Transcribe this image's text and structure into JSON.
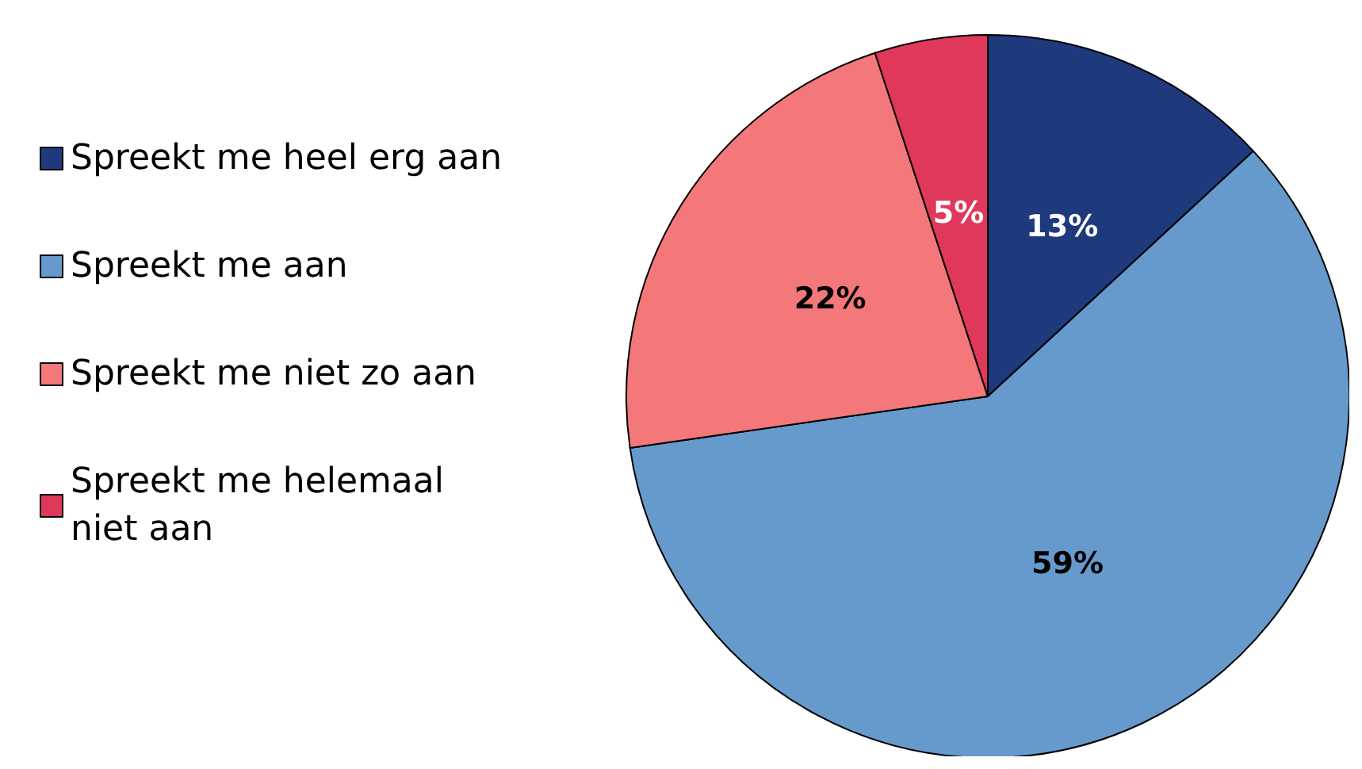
{
  "chart_data": {
    "type": "pie",
    "categories": [
      "Spreekt me heel erg aan",
      "Spreekt me aan",
      "Spreekt me niet zo aan",
      "Spreekt me helemaal niet aan"
    ],
    "values": [
      13,
      59,
      22,
      5
    ],
    "colors": [
      "#1f3a7c",
      "#6699cc",
      "#f4777a",
      "#e0385a"
    ],
    "value_labels": [
      "13%",
      "59%",
      "22%",
      "5%"
    ],
    "legend": "left"
  }
}
